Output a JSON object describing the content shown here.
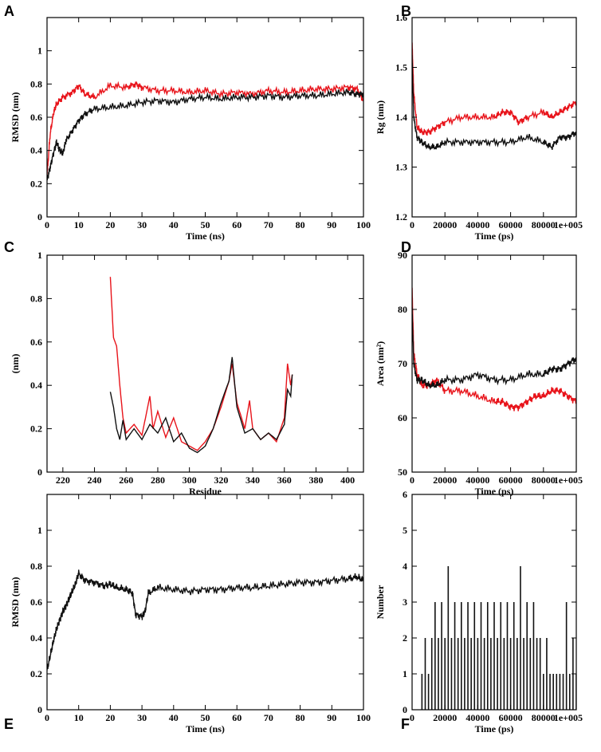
{
  "chart_data": [
    {
      "panel": "A",
      "type": "line",
      "xlabel": "Time (ns)",
      "ylabel": "RMSD (nm)",
      "xlim": [
        0,
        100
      ],
      "ylim": [
        0,
        1.2
      ],
      "xticks": [
        0,
        10,
        20,
        30,
        40,
        50,
        60,
        70,
        80,
        90,
        100
      ],
      "yticks": [
        0,
        0.2,
        0.4,
        0.6,
        0.8,
        1
      ],
      "series": [
        {
          "color": "#e8141b",
          "x": [
            0,
            1,
            2,
            3,
            5,
            8,
            10,
            12,
            15,
            20,
            25,
            28,
            30,
            35,
            40,
            45,
            50,
            55,
            60,
            65,
            70,
            75,
            80,
            85,
            90,
            95,
            98,
            100
          ],
          "y": [
            0.25,
            0.5,
            0.62,
            0.68,
            0.72,
            0.75,
            0.79,
            0.74,
            0.72,
            0.79,
            0.78,
            0.8,
            0.78,
            0.76,
            0.76,
            0.75,
            0.76,
            0.74,
            0.75,
            0.74,
            0.76,
            0.75,
            0.76,
            0.77,
            0.77,
            0.78,
            0.77,
            0.7
          ]
        },
        {
          "color": "#111111",
          "x": [
            0,
            1,
            2,
            3,
            4,
            5,
            6,
            8,
            10,
            12,
            15,
            20,
            25,
            30,
            35,
            40,
            45,
            50,
            55,
            60,
            65,
            70,
            75,
            80,
            85,
            90,
            95,
            98,
            100
          ],
          "y": [
            0.22,
            0.3,
            0.38,
            0.45,
            0.4,
            0.38,
            0.46,
            0.52,
            0.58,
            0.62,
            0.65,
            0.66,
            0.67,
            0.69,
            0.7,
            0.69,
            0.71,
            0.72,
            0.71,
            0.72,
            0.72,
            0.73,
            0.72,
            0.73,
            0.73,
            0.74,
            0.75,
            0.74,
            0.74
          ]
        }
      ]
    },
    {
      "panel": "B",
      "type": "line",
      "xlabel": "Time (ps)",
      "ylabel": "Rg (nm)",
      "xlim": [
        0,
        100000
      ],
      "ylim": [
        1.2,
        1.6
      ],
      "xticks": [
        0,
        20000,
        40000,
        60000,
        80000,
        100000
      ],
      "xtick_labels": [
        "0",
        "20000",
        "40000",
        "60000",
        "80000",
        "1e+005"
      ],
      "yticks": [
        1.2,
        1.3,
        1.4,
        1.5,
        1.6
      ],
      "series": [
        {
          "color": "#e8141b",
          "x": [
            0,
            1000,
            3000,
            6000,
            10000,
            15000,
            20000,
            30000,
            40000,
            50000,
            55000,
            60000,
            65000,
            70000,
            80000,
            85000,
            90000,
            95000,
            100000
          ],
          "y": [
            1.55,
            1.45,
            1.38,
            1.37,
            1.37,
            1.38,
            1.39,
            1.4,
            1.4,
            1.4,
            1.41,
            1.41,
            1.39,
            1.4,
            1.41,
            1.4,
            1.41,
            1.42,
            1.43
          ]
        },
        {
          "color": "#111111",
          "x": [
            0,
            1000,
            3000,
            6000,
            10000,
            15000,
            20000,
            30000,
            40000,
            50000,
            60000,
            70000,
            80000,
            85000,
            90000,
            95000,
            100000
          ],
          "y": [
            1.52,
            1.4,
            1.36,
            1.35,
            1.34,
            1.34,
            1.35,
            1.35,
            1.35,
            1.35,
            1.35,
            1.36,
            1.35,
            1.34,
            1.36,
            1.36,
            1.37
          ]
        }
      ]
    },
    {
      "panel": "C",
      "type": "line",
      "xlabel": "Residue",
      "ylabel": "(nm)",
      "xlim": [
        210,
        410
      ],
      "ylim": [
        0,
        1
      ],
      "xticks": [
        220,
        240,
        260,
        280,
        300,
        320,
        340,
        360,
        380,
        400
      ],
      "yticks": [
        0,
        0.2,
        0.4,
        0.6,
        0.8,
        1
      ],
      "series": [
        {
          "color": "#e8141b",
          "x": [
            250,
            252,
            254,
            256,
            258,
            260,
            265,
            270,
            275,
            277,
            280,
            285,
            290,
            295,
            300,
            305,
            310,
            315,
            320,
            325,
            327,
            330,
            335,
            338,
            340,
            345,
            350,
            355,
            360,
            362,
            364,
            365
          ],
          "y": [
            0.9,
            0.62,
            0.58,
            0.4,
            0.25,
            0.18,
            0.22,
            0.17,
            0.35,
            0.2,
            0.28,
            0.16,
            0.25,
            0.14,
            0.12,
            0.1,
            0.14,
            0.2,
            0.3,
            0.42,
            0.5,
            0.32,
            0.2,
            0.33,
            0.2,
            0.15,
            0.18,
            0.14,
            0.25,
            0.5,
            0.4,
            0.45
          ]
        },
        {
          "color": "#111111",
          "x": [
            250,
            252,
            254,
            256,
            258,
            260,
            265,
            270,
            275,
            280,
            285,
            290,
            295,
            300,
            305,
            310,
            315,
            320,
            325,
            327,
            330,
            335,
            340,
            345,
            350,
            355,
            360,
            362,
            364,
            365
          ],
          "y": [
            0.37,
            0.3,
            0.2,
            0.15,
            0.24,
            0.15,
            0.2,
            0.15,
            0.22,
            0.18,
            0.25,
            0.14,
            0.18,
            0.11,
            0.09,
            0.12,
            0.2,
            0.32,
            0.42,
            0.53,
            0.3,
            0.18,
            0.2,
            0.15,
            0.18,
            0.15,
            0.22,
            0.38,
            0.35,
            0.45
          ]
        }
      ]
    },
    {
      "panel": "D",
      "type": "line",
      "xlabel": "Time (ps)",
      "ylabel": "Area (nm²)",
      "xlim": [
        0,
        100000
      ],
      "ylim": [
        50,
        90
      ],
      "xticks": [
        0,
        20000,
        40000,
        60000,
        80000,
        100000
      ],
      "xtick_labels": [
        "0",
        "20000",
        "40000",
        "60000",
        "80000",
        "1e+005"
      ],
      "yticks": [
        50,
        60,
        70,
        80,
        90
      ],
      "series": [
        {
          "color": "#e8141b",
          "x": [
            0,
            1000,
            3000,
            6000,
            10000,
            15000,
            20000,
            30000,
            40000,
            50000,
            55000,
            60000,
            65000,
            70000,
            75000,
            80000,
            85000,
            90000,
            95000,
            100000
          ],
          "y": [
            84,
            72,
            68,
            66,
            66,
            67,
            65,
            65,
            64,
            63,
            63,
            62,
            62,
            63,
            64,
            64,
            65,
            65,
            64,
            63
          ]
        },
        {
          "color": "#111111",
          "x": [
            0,
            1000,
            3000,
            6000,
            10000,
            15000,
            20000,
            30000,
            40000,
            50000,
            60000,
            70000,
            80000,
            85000,
            90000,
            95000,
            100000
          ],
          "y": [
            80,
            70,
            67,
            67,
            66,
            66,
            67,
            67,
            68,
            67,
            67,
            68,
            68,
            69,
            69,
            70,
            71
          ]
        }
      ]
    },
    {
      "panel": "E",
      "type": "line",
      "xlabel": "Time (ns)",
      "ylabel": "RMSD (nm)",
      "xlim": [
        0,
        100
      ],
      "ylim": [
        0,
        1.2
      ],
      "xticks": [
        0,
        10,
        20,
        30,
        40,
        50,
        60,
        70,
        80,
        90,
        100
      ],
      "yticks": [
        0,
        0.2,
        0.4,
        0.6,
        0.8,
        1
      ],
      "series": [
        {
          "color": "#111111",
          "x": [
            0,
            1,
            2,
            3,
            4,
            5,
            6,
            7,
            8,
            9,
            10,
            12,
            15,
            18,
            20,
            22,
            25,
            27,
            28,
            30,
            31,
            32,
            35,
            40,
            45,
            50,
            55,
            60,
            65,
            70,
            75,
            80,
            85,
            90,
            95,
            98,
            100
          ],
          "y": [
            0.22,
            0.3,
            0.38,
            0.45,
            0.5,
            0.55,
            0.58,
            0.62,
            0.66,
            0.7,
            0.76,
            0.72,
            0.71,
            0.69,
            0.7,
            0.68,
            0.67,
            0.65,
            0.53,
            0.52,
            0.55,
            0.65,
            0.68,
            0.67,
            0.66,
            0.67,
            0.67,
            0.68,
            0.68,
            0.69,
            0.7,
            0.71,
            0.71,
            0.72,
            0.73,
            0.74,
            0.72
          ]
        }
      ]
    },
    {
      "panel": "F",
      "type": "bar",
      "xlabel": "Time (ps)",
      "ylabel": "Number",
      "xlim": [
        0,
        100000
      ],
      "ylim": [
        0,
        6
      ],
      "xticks": [
        0,
        20000,
        40000,
        60000,
        80000,
        100000
      ],
      "xtick_labels": [
        "0",
        "20000",
        "40000",
        "60000",
        "80000",
        "1e+005"
      ],
      "yticks": [
        0,
        1,
        2,
        3,
        4,
        5,
        6
      ],
      "x": [
        6000,
        8000,
        10000,
        12000,
        14000,
        16000,
        18000,
        20000,
        22000,
        24000,
        26000,
        28000,
        30000,
        32000,
        34000,
        36000,
        38000,
        40000,
        42000,
        44000,
        46000,
        48000,
        50000,
        52000,
        54000,
        56000,
        58000,
        60000,
        62000,
        64000,
        66000,
        68000,
        70000,
        72000,
        74000,
        76000,
        78000,
        80000,
        82000,
        84000,
        86000,
        88000,
        90000,
        92000,
        94000,
        96000,
        98000,
        100000
      ],
      "values": [
        1,
        2,
        1,
        2,
        3,
        2,
        3,
        2,
        4,
        2,
        3,
        2,
        3,
        2,
        3,
        2,
        3,
        2,
        3,
        2,
        3,
        2,
        3,
        2,
        3,
        2,
        3,
        2,
        3,
        2,
        4,
        2,
        3,
        2,
        3,
        2,
        2,
        1,
        2,
        1,
        1,
        1,
        1,
        1,
        3,
        1,
        2,
        1
      ]
    }
  ]
}
